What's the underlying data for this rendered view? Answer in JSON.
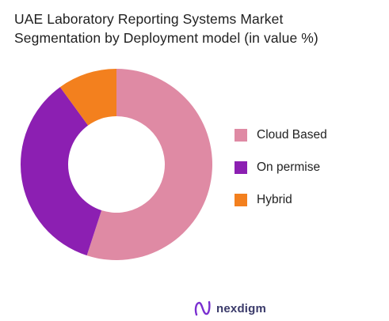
{
  "title": "UAE Laboratory Reporting Systems Market\nSegmentation by  Deployment model (in value %)",
  "chart_data": {
    "type": "pie",
    "donut": true,
    "title": "UAE Laboratory Reporting Systems Market\nSegmentation by  Deployment model (in value %)",
    "categories": [
      "Cloud Based",
      "On permise",
      "Hybrid"
    ],
    "values": [
      55,
      35,
      10
    ],
    "colors": [
      "#df8aa4",
      "#8c1fb2",
      "#f3801e"
    ],
    "legend_position": "right",
    "start_angle": "top, clockwise"
  },
  "brand": {
    "name": "nexdigm",
    "icon": "nexdigm-logo-icon"
  }
}
